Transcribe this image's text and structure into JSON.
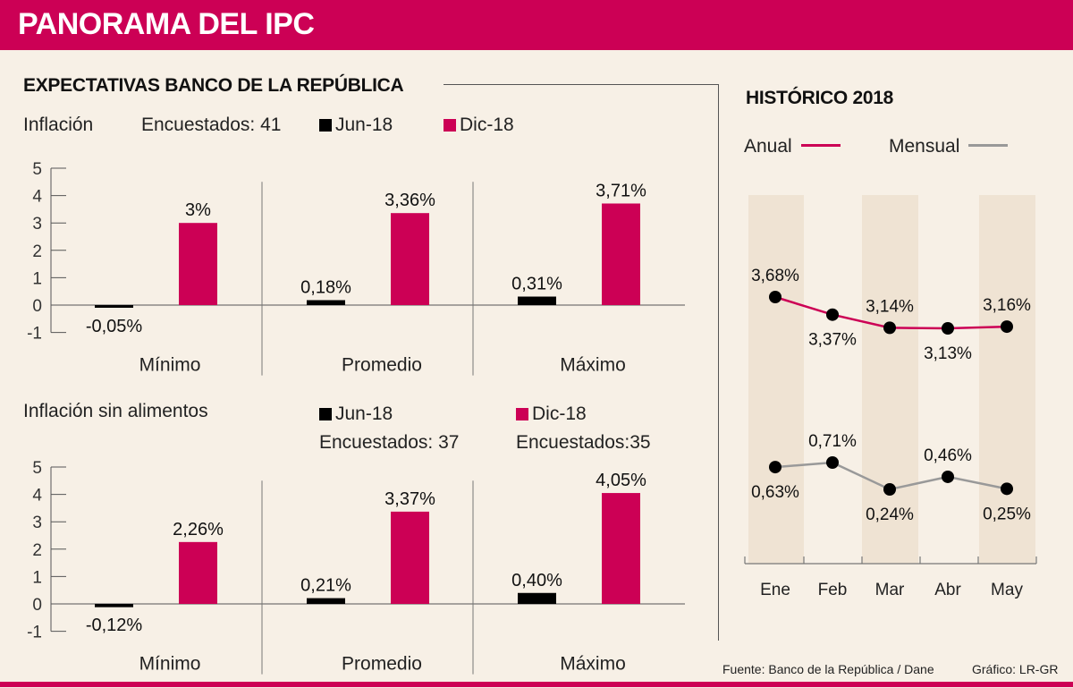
{
  "header": {
    "title": "PANORAMA DEL IPC"
  },
  "left": {
    "title": "EXPECTATIVAS  BANCO DE LA REPÚBLICA",
    "chart1": {
      "subtitle": "Inflación",
      "respondents": "Encuestados: 41",
      "legend": [
        {
          "label": "Jun-18",
          "color": "#000000"
        },
        {
          "label": "Dic-18",
          "color": "#cc0055"
        }
      ]
    },
    "chart2": {
      "subtitle": "Inflación sin alimentos",
      "legend": [
        {
          "label": "Jun-18",
          "color": "#000000",
          "respondents": "Encuestados: 37"
        },
        {
          "label": "Dic-18",
          "color": "#cc0055",
          "respondents": "Encuestados:35"
        }
      ]
    }
  },
  "right": {
    "title": "HISTÓRICO 2018",
    "legend": [
      {
        "label": "Anual",
        "color": "#cc0055"
      },
      {
        "label": "Mensual",
        "color": "#999999"
      }
    ]
  },
  "footer": {
    "source": "Fuente: Banco de la República / Dane",
    "credit": "Gráfico: LR-GR"
  },
  "chart_data": [
    {
      "type": "bar",
      "title": "Inflación",
      "categories": [
        "Mínimo",
        "Promedio",
        "Máximo"
      ],
      "series": [
        {
          "name": "Jun-18",
          "color": "#000000",
          "values": [
            -0.05,
            0.18,
            0.31
          ],
          "labels": [
            "-0,05%",
            "0,18%",
            "0,31%"
          ]
        },
        {
          "name": "Dic-18",
          "color": "#cc0055",
          "values": [
            3.0,
            3.36,
            3.71
          ],
          "labels": [
            "3%",
            "3,36%",
            "3,71%"
          ]
        }
      ],
      "yticks": [
        "5",
        "4",
        "3",
        "2",
        "1",
        "0",
        "-1"
      ],
      "ylim": [
        -1,
        5
      ]
    },
    {
      "type": "bar",
      "title": "Inflación sin alimentos",
      "categories": [
        "Mínimo",
        "Promedio",
        "Máximo"
      ],
      "series": [
        {
          "name": "Jun-18",
          "color": "#000000",
          "values": [
            -0.12,
            0.21,
            0.4
          ],
          "labels": [
            "-0,12%",
            "0,21%",
            "0,40%"
          ]
        },
        {
          "name": "Dic-18",
          "color": "#cc0055",
          "values": [
            2.26,
            3.37,
            4.05
          ],
          "labels": [
            "2,26%",
            "3,37%",
            "4,05%"
          ]
        }
      ],
      "yticks": [
        "5",
        "4",
        "3",
        "2",
        "1",
        "0",
        "-1"
      ],
      "ylim": [
        -1,
        5
      ]
    },
    {
      "type": "line",
      "title": "HISTÓRICO 2018",
      "categories": [
        "Ene",
        "Feb",
        "Mar",
        "Abr",
        "May"
      ],
      "series": [
        {
          "name": "Anual",
          "color": "#cc0055",
          "values": [
            3.68,
            3.37,
            3.14,
            3.13,
            3.16
          ],
          "labels": [
            "3,68%",
            "3,37%",
            "3,14%",
            "3,13%",
            "3,16%"
          ],
          "label_pos": [
            "above",
            "below",
            "above",
            "below",
            "above"
          ]
        },
        {
          "name": "Mensual",
          "color": "#999999",
          "values": [
            0.63,
            0.71,
            0.24,
            0.46,
            0.25
          ],
          "labels": [
            "0,63%",
            "0,71%",
            "0,24%",
            "0,46%",
            "0,25%"
          ],
          "label_pos": [
            "below",
            "above",
            "below",
            "above",
            "below"
          ]
        }
      ]
    }
  ]
}
